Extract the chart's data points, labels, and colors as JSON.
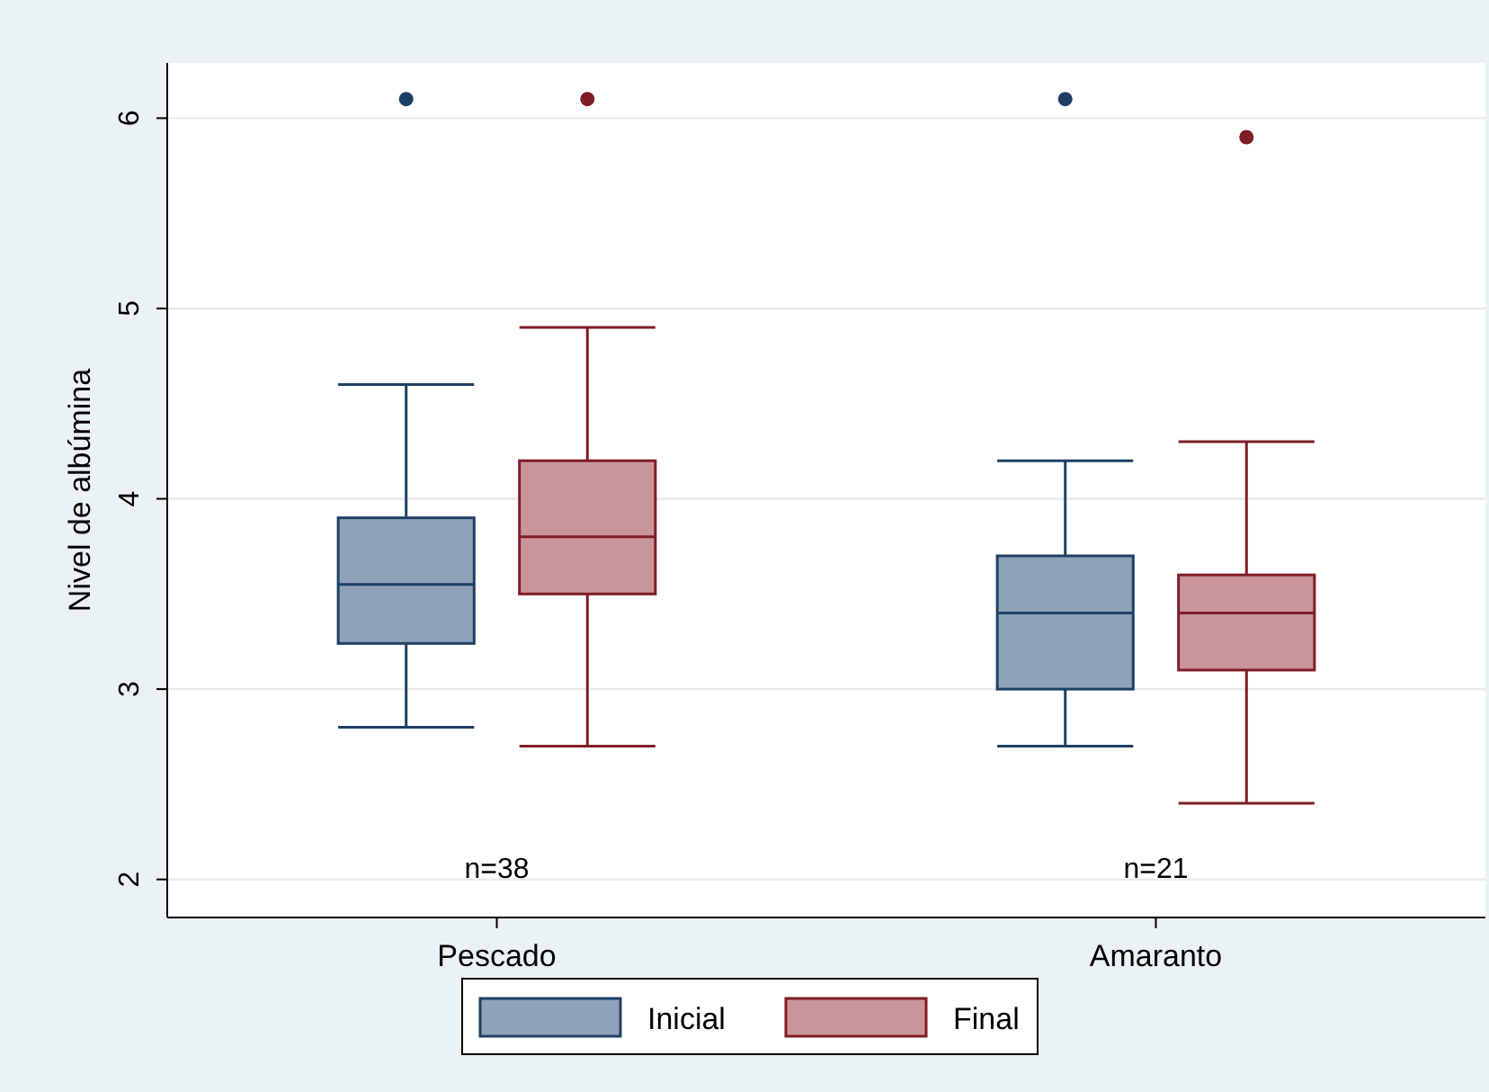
{
  "chart_data": {
    "type": "box",
    "ylabel": "Nivel de albúmina",
    "categories": [
      "Pescado",
      "Amaranto"
    ],
    "series": [
      {
        "name": "Inicial",
        "color": "#8ea2b8",
        "boxes": [
          {
            "low": 2.8,
            "q1": 3.24,
            "median": 3.55,
            "q3": 3.9,
            "high": 4.6,
            "outliers": [
              6.1
            ]
          },
          {
            "low": 2.7,
            "q1": 3.0,
            "median": 3.4,
            "q3": 3.7,
            "high": 4.2,
            "outliers": [
              6.1
            ]
          }
        ]
      },
      {
        "name": "Final",
        "color": "#c9959a",
        "boxes": [
          {
            "low": 2.7,
            "q1": 3.5,
            "median": 3.8,
            "q3": 4.2,
            "high": 4.9,
            "outliers": [
              6.1
            ]
          },
          {
            "low": 2.4,
            "q1": 3.1,
            "median": 3.4,
            "q3": 3.6,
            "high": 4.3,
            "outliers": [
              5.9
            ]
          }
        ]
      }
    ],
    "ylim": [
      1.8,
      6.29
    ],
    "yticks": [
      2,
      3,
      4,
      5,
      6
    ],
    "grid": "y",
    "legend": "bottom",
    "annotations": [
      "n=38",
      "n=21"
    ]
  }
}
